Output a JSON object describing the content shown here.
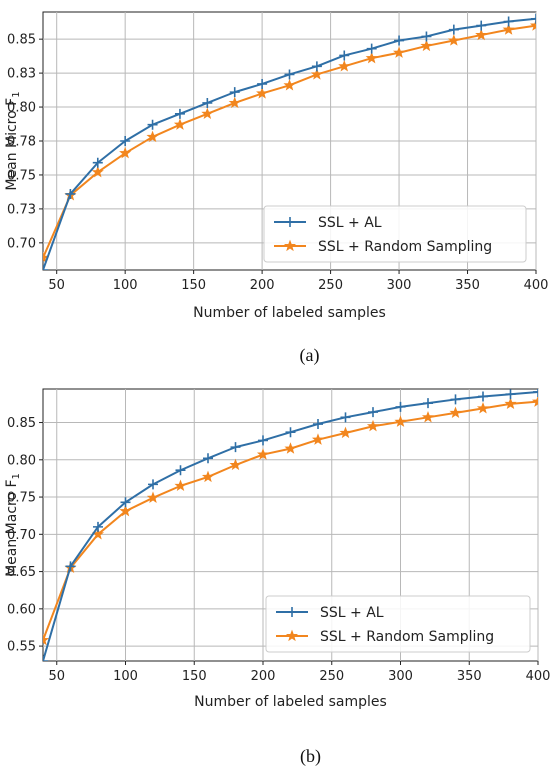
{
  "colors": {
    "al": "#2f6fa6",
    "random": "#f2861e",
    "grid": "#b8b8b8"
  },
  "legend_location": "lower-right",
  "chart_data": [
    {
      "type": "line",
      "caption": "(a)",
      "xlabel": "Number of labeled samples",
      "ylabel": "Mean Micro F",
      "ylabel_sub": "1",
      "xlim": [
        40,
        400
      ],
      "ylim": [
        0.68,
        0.87
      ],
      "xticks": [
        50,
        100,
        150,
        200,
        250,
        300,
        350,
        400
      ],
      "yticks": [
        0.7,
        0.725,
        0.75,
        0.775,
        0.8,
        0.825,
        0.85
      ],
      "ytick_labels": [
        "0.70",
        "0.73",
        "0.75",
        "0.78",
        "0.80",
        "0.83",
        "0.85"
      ],
      "x": [
        40,
        60,
        80,
        100,
        120,
        140,
        160,
        180,
        200,
        220,
        240,
        260,
        280,
        300,
        320,
        340,
        360,
        380,
        400
      ],
      "series": [
        {
          "name": "SSL + AL",
          "marker": "plus",
          "values": [
            0.68,
            0.736,
            0.759,
            0.775,
            0.787,
            0.795,
            0.803,
            0.811,
            0.817,
            0.824,
            0.83,
            0.838,
            0.843,
            0.849,
            0.852,
            0.857,
            0.86,
            0.863,
            0.865
          ]
        },
        {
          "name": "SSL + Random Sampling",
          "marker": "star",
          "values": [
            0.689,
            0.735,
            0.752,
            0.766,
            0.778,
            0.787,
            0.795,
            0.803,
            0.81,
            0.816,
            0.824,
            0.83,
            0.836,
            0.84,
            0.845,
            0.849,
            0.853,
            0.857,
            0.86
          ]
        }
      ]
    },
    {
      "type": "line",
      "caption": "(b)",
      "xlabel": "Number of labeled samples",
      "ylabel": "Mean Macro F",
      "ylabel_sub": "1",
      "xlim": [
        40,
        400
      ],
      "ylim": [
        0.53,
        0.895
      ],
      "xticks": [
        50,
        100,
        150,
        200,
        250,
        300,
        350,
        400
      ],
      "yticks": [
        0.55,
        0.6,
        0.65,
        0.7,
        0.75,
        0.8,
        0.85
      ],
      "ytick_labels": [
        "0.55",
        "0.60",
        "0.65",
        "0.70",
        "0.75",
        "0.80",
        "0.85"
      ],
      "x": [
        40,
        60,
        80,
        100,
        120,
        140,
        160,
        180,
        200,
        220,
        240,
        260,
        280,
        300,
        320,
        340,
        360,
        380,
        400
      ],
      "series": [
        {
          "name": "SSL + AL",
          "marker": "plus",
          "values": [
            0.53,
            0.657,
            0.71,
            0.743,
            0.767,
            0.786,
            0.802,
            0.817,
            0.826,
            0.837,
            0.848,
            0.857,
            0.864,
            0.871,
            0.876,
            0.881,
            0.885,
            0.888,
            0.891
          ]
        },
        {
          "name": "SSL + Random Sampling",
          "marker": "star",
          "values": [
            0.558,
            0.655,
            0.7,
            0.731,
            0.749,
            0.765,
            0.777,
            0.793,
            0.807,
            0.815,
            0.827,
            0.836,
            0.845,
            0.851,
            0.857,
            0.863,
            0.869,
            0.875,
            0.878
          ]
        }
      ]
    }
  ]
}
